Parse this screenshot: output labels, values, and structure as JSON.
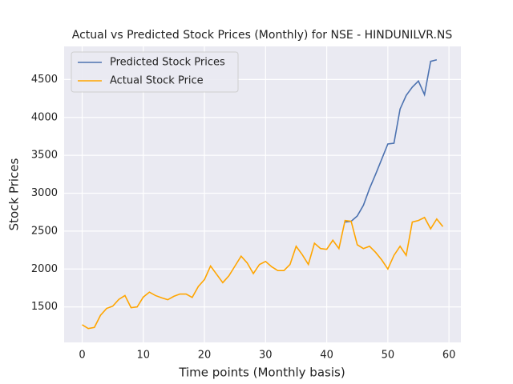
{
  "chart_data": {
    "type": "line",
    "title": "Actual vs Predicted Stock Prices (Monthly) for NSE - HINDUNILVR.NS",
    "xlabel": "Time points (Monthly basis)",
    "ylabel": "Stock Prices",
    "x": [
      0,
      1,
      2,
      3,
      4,
      5,
      6,
      7,
      8,
      9,
      10,
      11,
      12,
      13,
      14,
      15,
      16,
      17,
      18,
      19,
      20,
      21,
      22,
      23,
      24,
      25,
      26,
      27,
      28,
      29,
      30,
      31,
      32,
      33,
      34,
      35,
      36,
      37,
      38,
      39,
      40,
      41,
      42,
      43,
      44,
      45,
      46,
      47,
      48,
      49,
      50,
      51,
      52,
      53,
      54,
      55,
      56,
      57,
      58,
      59
    ],
    "series": [
      {
        "name": "Predicted Stock Prices",
        "color": "#4c72b0",
        "values": [
          null,
          null,
          null,
          null,
          null,
          null,
          null,
          null,
          null,
          null,
          null,
          null,
          null,
          null,
          null,
          null,
          null,
          null,
          null,
          null,
          null,
          null,
          null,
          null,
          null,
          null,
          null,
          null,
          null,
          null,
          null,
          null,
          null,
          null,
          null,
          null,
          null,
          null,
          null,
          null,
          null,
          null,
          null,
          2620,
          2630,
          2700,
          2840,
          3060,
          3250,
          3450,
          3650,
          3660,
          4110,
          4290,
          4400,
          4480,
          4300,
          4740,
          4760,
          null
        ]
      },
      {
        "name": "Actual Stock Price",
        "color": "#ffa500",
        "values": [
          1265,
          1215,
          1230,
          1390,
          1480,
          1510,
          1600,
          1650,
          1490,
          1500,
          1630,
          1695,
          1650,
          1620,
          1595,
          1640,
          1670,
          1670,
          1625,
          1770,
          1860,
          2040,
          1930,
          1820,
          1910,
          2040,
          2170,
          2080,
          1940,
          2060,
          2100,
          2030,
          1980,
          1980,
          2060,
          2300,
          2190,
          2060,
          2340,
          2270,
          2260,
          2380,
          2270,
          2640,
          2630,
          2320,
          2270,
          2300,
          2220,
          2120,
          2000,
          2180,
          2300,
          2180,
          2620,
          2640,
          2680,
          2530,
          2660,
          2560
        ]
      }
    ],
    "xlim": [
      -2.95,
      61.95
    ],
    "xticks": [
      0,
      10,
      20,
      30,
      40,
      50,
      60
    ],
    "ylim": [
      1032,
      4937
    ],
    "yticks": [
      1500,
      2000,
      2500,
      3000,
      3500,
      4000,
      4500
    ],
    "grid": true,
    "legend": "upper left"
  }
}
